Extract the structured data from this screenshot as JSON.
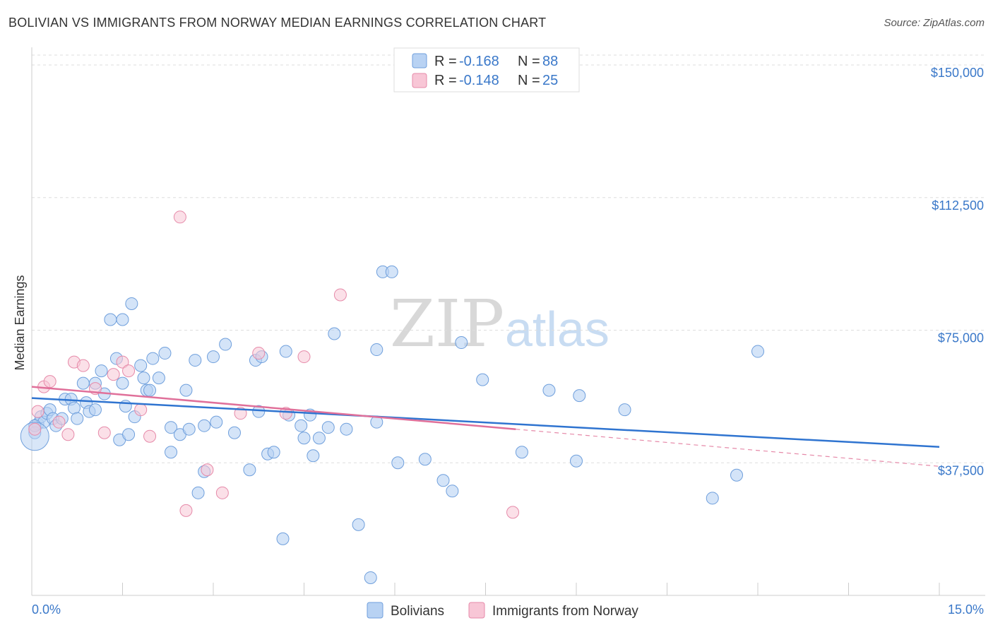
{
  "title": "BOLIVIAN VS IMMIGRANTS FROM NORWAY MEDIAN EARNINGS CORRELATION CHART",
  "source": "Source: ZipAtlas.com",
  "watermark": {
    "zip": "ZIP",
    "atlas": "atlas"
  },
  "colors": {
    "blue_fill": "#b8d2f3",
    "blue_stroke": "#6f9fdc",
    "blue_line": "#2f74d0",
    "pink_fill": "#f8c6d6",
    "pink_stroke": "#e68aa9",
    "pink_line": "#e0709a",
    "tick_text": "#3a78c9",
    "grid": "#dddddd"
  },
  "stats": [
    {
      "r_label": "R = ",
      "r_value": "-0.168",
      "n_label": "N = ",
      "n_value": "88"
    },
    {
      "r_label": "R = ",
      "r_value": "-0.148",
      "n_label": "N = ",
      "n_value": "25"
    }
  ],
  "chart_data": {
    "type": "scatter",
    "title": "BOLIVIAN VS IMMIGRANTS FROM NORWAY MEDIAN EARNINGS CORRELATION CHART",
    "xlabel": "",
    "ylabel": "Median Earnings",
    "xlim": [
      0,
      15
    ],
    "ylim": [
      0,
      155000
    ],
    "x_tick_labels": [
      "0.0%",
      "15.0%"
    ],
    "y_ticks": [
      37500,
      75000,
      112500,
      150000
    ],
    "y_tick_labels": [
      "$37,500",
      "$75,000",
      "$112,500",
      "$150,000"
    ],
    "grid": "horizontal dashed",
    "legend_position": "bottom",
    "series": [
      {
        "name": "Bolivians",
        "color": "#6f9fdc",
        "trend": {
          "x": [
            0,
            15
          ],
          "y": [
            55800,
            42000
          ]
        },
        "points": [
          [
            0.1,
            48500
          ],
          [
            0.15,
            50500
          ],
          [
            0.2,
            49000
          ],
          [
            0.25,
            51500
          ],
          [
            0.3,
            52500
          ],
          [
            0.35,
            50000
          ],
          [
            0.4,
            48000
          ],
          [
            0.5,
            50000
          ],
          [
            0.55,
            55500
          ],
          [
            0.65,
            55500
          ],
          [
            0.7,
            53000
          ],
          [
            0.75,
            50000
          ],
          [
            0.85,
            60000
          ],
          [
            0.9,
            54500
          ],
          [
            0.95,
            52000
          ],
          [
            1.05,
            60000
          ],
          [
            1.05,
            52500
          ],
          [
            1.15,
            63500
          ],
          [
            1.2,
            57000
          ],
          [
            1.3,
            78000
          ],
          [
            1.4,
            67000
          ],
          [
            1.45,
            44000
          ],
          [
            1.5,
            60000
          ],
          [
            1.5,
            78000
          ],
          [
            1.55,
            53500
          ],
          [
            1.6,
            45500
          ],
          [
            1.65,
            82500
          ],
          [
            1.7,
            50500
          ],
          [
            1.8,
            65000
          ],
          [
            1.85,
            61500
          ],
          [
            1.9,
            58000
          ],
          [
            1.95,
            58000
          ],
          [
            2.0,
            67000
          ],
          [
            2.1,
            61500
          ],
          [
            2.2,
            68500
          ],
          [
            2.3,
            47500
          ],
          [
            2.3,
            40500
          ],
          [
            2.45,
            45500
          ],
          [
            2.55,
            58000
          ],
          [
            2.6,
            47000
          ],
          [
            2.7,
            66500
          ],
          [
            2.75,
            29000
          ],
          [
            2.85,
            35000
          ],
          [
            2.85,
            48000
          ],
          [
            3.0,
            67500
          ],
          [
            3.05,
            49000
          ],
          [
            3.2,
            71000
          ],
          [
            3.35,
            46000
          ],
          [
            3.6,
            35500
          ],
          [
            3.7,
            66500
          ],
          [
            3.75,
            52000
          ],
          [
            3.8,
            67500
          ],
          [
            3.9,
            40000
          ],
          [
            4.0,
            40500
          ],
          [
            4.15,
            16000
          ],
          [
            4.2,
            69000
          ],
          [
            4.25,
            51000
          ],
          [
            4.45,
            48000
          ],
          [
            4.5,
            44500
          ],
          [
            4.6,
            51000
          ],
          [
            4.65,
            39500
          ],
          [
            4.75,
            44500
          ],
          [
            4.9,
            47500
          ],
          [
            5.0,
            74000
          ],
          [
            5.2,
            47000
          ],
          [
            5.4,
            20000
          ],
          [
            5.6,
            5000
          ],
          [
            5.7,
            49000
          ],
          [
            5.7,
            69500
          ],
          [
            5.8,
            91500
          ],
          [
            5.95,
            91500
          ],
          [
            6.05,
            37500
          ],
          [
            6.5,
            38500
          ],
          [
            6.8,
            32500
          ],
          [
            6.95,
            29500
          ],
          [
            7.1,
            71500
          ],
          [
            7.45,
            61000
          ],
          [
            8.1,
            40500
          ],
          [
            8.55,
            58000
          ],
          [
            9.0,
            38000
          ],
          [
            9.05,
            56500
          ],
          [
            9.8,
            52500
          ],
          [
            11.25,
            27500
          ],
          [
            11.65,
            34000
          ],
          [
            12.0,
            69000
          ],
          [
            0.05,
            46000
          ],
          [
            0.05,
            48000
          ],
          [
            0.05,
            45000
          ]
        ]
      },
      {
        "name": "Immigrants from Norway",
        "color": "#e68aa9",
        "trend": {
          "x": [
            0,
            8.0
          ],
          "y": [
            59000,
            47000
          ]
        },
        "trend_dashed": {
          "x": [
            8.0,
            15
          ],
          "y": [
            47000,
            36500
          ]
        },
        "points": [
          [
            0.05,
            47000
          ],
          [
            0.1,
            52000
          ],
          [
            0.2,
            59000
          ],
          [
            0.3,
            60500
          ],
          [
            0.45,
            49000
          ],
          [
            0.6,
            45500
          ],
          [
            0.7,
            66000
          ],
          [
            0.85,
            65000
          ],
          [
            1.05,
            58500
          ],
          [
            1.2,
            46000
          ],
          [
            1.35,
            62500
          ],
          [
            1.5,
            66000
          ],
          [
            1.6,
            63500
          ],
          [
            1.8,
            52500
          ],
          [
            1.95,
            45000
          ],
          [
            2.45,
            107000
          ],
          [
            2.55,
            24000
          ],
          [
            2.9,
            35500
          ],
          [
            3.15,
            29000
          ],
          [
            3.45,
            51500
          ],
          [
            3.75,
            68500
          ],
          [
            4.2,
            51500
          ],
          [
            4.5,
            67500
          ],
          [
            5.1,
            85000
          ],
          [
            7.95,
            23500
          ]
        ]
      }
    ]
  },
  "legend": [
    {
      "name": "Bolivians"
    },
    {
      "name": "Immigrants from Norway"
    }
  ]
}
